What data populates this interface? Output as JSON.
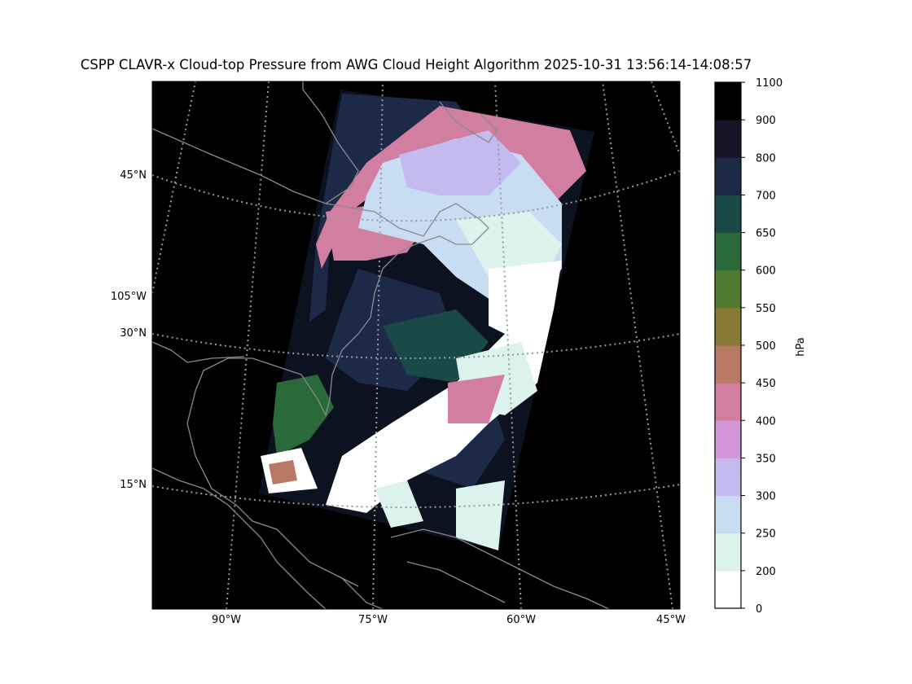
{
  "title": "CSPP CLAVR-x Cloud-top Pressure from AWG Cloud Height Algorithm 2025-10-31 13:56:14-14:08:57",
  "map": {
    "background": "#000000",
    "coastline_color": "#8a8a8a",
    "gridline_color": "#9a9a9a",
    "lat_labels": [
      "45°N",
      "105°W",
      "30°N",
      "15°N"
    ],
    "lon_labels": [
      "90°W",
      "75°W",
      "60°W",
      "45°W"
    ]
  },
  "colorbar": {
    "label": "hPa",
    "ticks": [
      "0",
      "200",
      "250",
      "300",
      "350",
      "400",
      "450",
      "500",
      "550",
      "600",
      "650",
      "700",
      "800",
      "900",
      "1100"
    ],
    "colors": [
      "#ffffff",
      "#dcf2ec",
      "#c8dcf2",
      "#c4baf0",
      "#d396d8",
      "#d17ea0",
      "#b87866",
      "#8a7a38",
      "#507a30",
      "#2a6a3a",
      "#1a4a48",
      "#1c2a48",
      "#1a1428",
      "#000000"
    ]
  }
}
